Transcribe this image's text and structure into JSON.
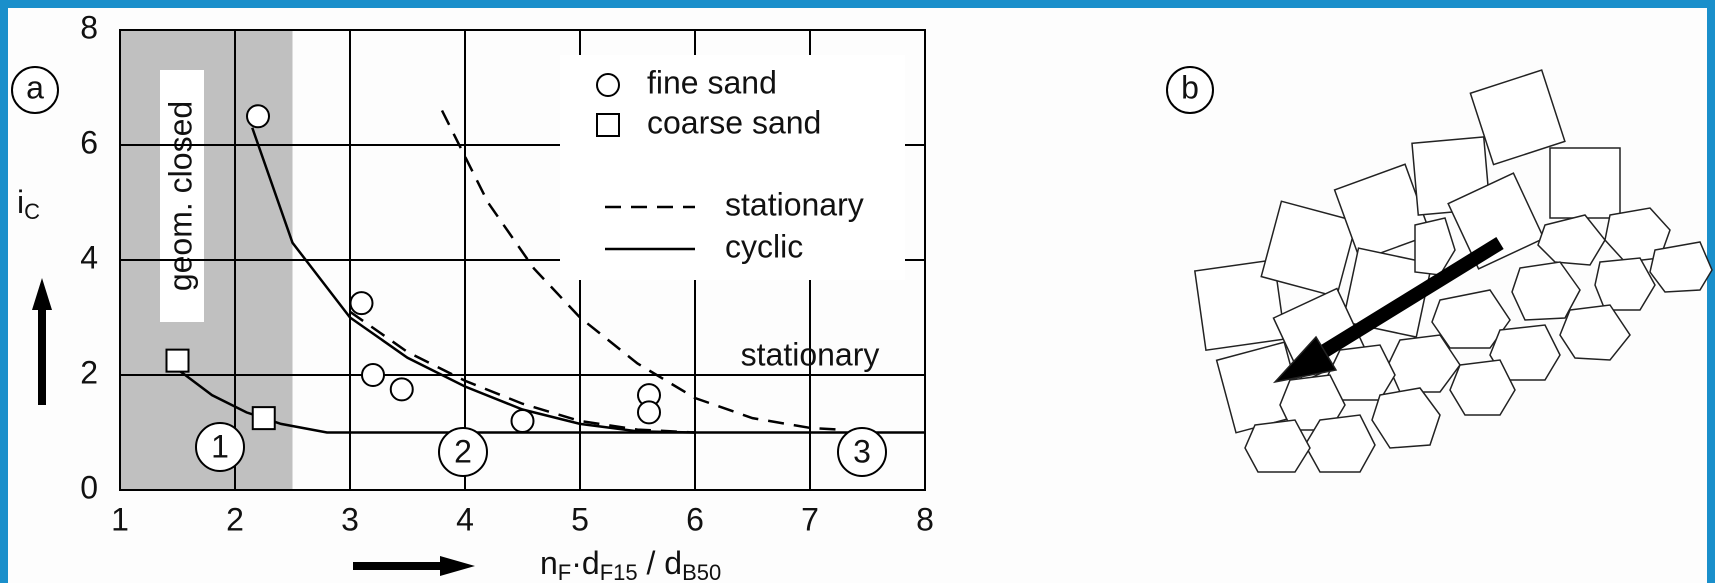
{
  "chart_data": {
    "type": "scatter",
    "ylabel": [
      "i",
      "C"
    ],
    "xlabel": [
      "n",
      "F",
      "·d",
      "F15",
      " / d",
      "B50"
    ],
    "xlim": [
      1,
      8
    ],
    "xticks": [
      1,
      2,
      3,
      4,
      5,
      6,
      7,
      8
    ],
    "ylim": [
      0,
      8
    ],
    "yticks": [
      0,
      2,
      4,
      6,
      8
    ],
    "grid": true,
    "shaded_region": {
      "x": [
        1,
        2.5
      ],
      "label": "geom. closed",
      "color": "#c0c0c0"
    },
    "points": [
      {
        "name": "fine sand",
        "marker": "circle",
        "x": [
          2.2,
          3.1,
          3.2,
          3.45,
          4.5,
          5.6,
          5.6
        ],
        "y": [
          6.5,
          3.25,
          2.0,
          1.75,
          1.2,
          1.65,
          1.35
        ]
      },
      {
        "name": "coarse sand",
        "marker": "square",
        "x": [
          1.5,
          2.25
        ],
        "y": [
          2.25,
          1.25
        ]
      }
    ],
    "lines": [
      {
        "name": "stationary",
        "style": "dashed",
        "x": [
          3.8,
          4.2,
          4.6,
          5.0,
          5.5,
          6.0,
          6.5,
          7.0,
          7.25
        ],
        "y": [
          6.6,
          5.0,
          3.85,
          3.0,
          2.2,
          1.6,
          1.25,
          1.08,
          1.05
        ]
      },
      {
        "name": "stationary",
        "style": "dashed",
        "x": [
          3.0,
          3.5,
          4.0,
          4.5,
          5.0,
          5.5,
          6.0
        ],
        "y": [
          3.1,
          2.4,
          1.9,
          1.5,
          1.2,
          1.05,
          1.0
        ]
      },
      {
        "name": "cyclic",
        "style": "solid",
        "x": [
          2.15,
          2.5,
          3.0,
          3.5,
          4.0,
          4.5,
          5.0,
          5.5,
          6.0
        ],
        "y": [
          6.3,
          4.3,
          3.0,
          2.3,
          1.8,
          1.4,
          1.15,
          1.02,
          1.0
        ]
      },
      {
        "name": "cyclic",
        "style": "solid",
        "x": [
          1.5,
          1.8,
          2.1,
          2.4,
          2.8,
          3.5,
          8.0
        ],
        "y": [
          2.1,
          1.65,
          1.35,
          1.15,
          1.0,
          1.0,
          1.0
        ]
      }
    ],
    "legend": [
      "fine sand",
      "coarse sand",
      "stationary",
      "cyclic"
    ],
    "annotations": [
      "stationary",
      "1",
      "2",
      "3"
    ],
    "panel_labels": [
      "a",
      "b"
    ]
  }
}
